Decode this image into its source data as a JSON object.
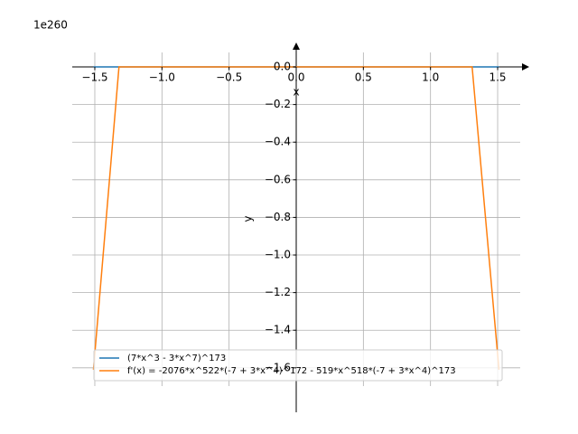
{
  "chart_data": {
    "type": "line",
    "offset_label": "1e260",
    "xlabel": "x",
    "ylabel": "y",
    "xlim": [
      -1.668,
      1.668
    ],
    "ylim": [
      -1.697,
      0.077
    ],
    "xticks": [
      {
        "value": -1.5,
        "label": "−1.5"
      },
      {
        "value": -1.0,
        "label": "−1.0"
      },
      {
        "value": -0.5,
        "label": "−0.5"
      },
      {
        "value": 0,
        "label": "0.0"
      },
      0.5,
      {
        "value": 1.0,
        "label": "1.0"
      },
      1.5
    ],
    "yticks": [
      {
        "value": 0,
        "label": "0.0"
      },
      {
        "value": -0.2,
        "label": "−0.2"
      },
      {
        "value": -0.4,
        "label": "−0.4"
      },
      {
        "value": -0.6,
        "label": "−0.6"
      },
      {
        "value": -0.8,
        "label": "−0.8"
      },
      {
        "value": -1.0,
        "label": "−1.0"
      },
      {
        "value": -1.2,
        "label": "−1.2"
      },
      {
        "value": -1.4,
        "label": "−1.4"
      },
      {
        "value": -1.6,
        "label": "−1.6"
      }
    ],
    "grid": true,
    "legend": "lower left",
    "series": [
      {
        "name": "(7*x^3 - 3*x^7)^173",
        "color": "#1f77b4",
        "x": [
          -1.51,
          1.51
        ],
        "values": [
          0,
          0
        ]
      },
      {
        "name": "f'(x) = -2076*x^522*(-7 + 3*x^4)^172 - 519*x^518*(-7 + 3*x^4)^173",
        "color": "#ff7f0e",
        "x": [
          -1.51,
          -1.32,
          1.31,
          1.51
        ],
        "values": [
          -1.61,
          0,
          0,
          -1.61
        ]
      }
    ]
  }
}
